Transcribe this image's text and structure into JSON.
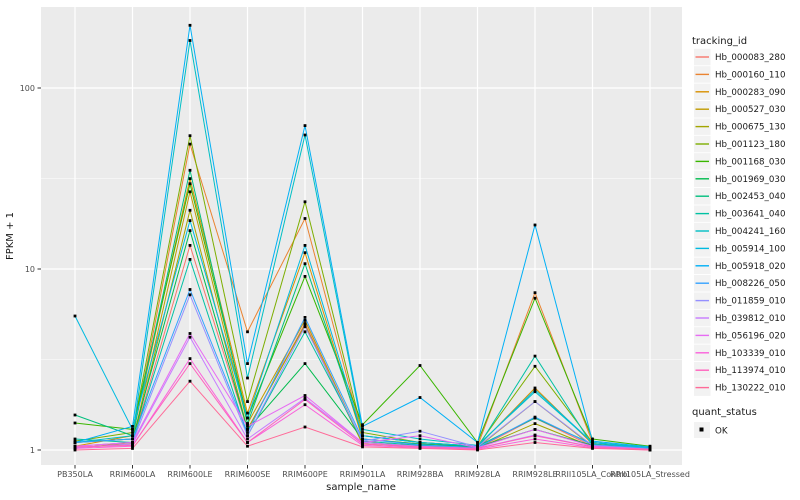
{
  "figure": {
    "bg": "#FFFFFF",
    "panel_bg": "#EBEBEB",
    "grid_color": "#FFFFFF",
    "axis_text_color": "#4D4D4D",
    "title_color": "#1A1A1A",
    "point_color": "#000000",
    "legend_key_bg": "#F2F2F2"
  },
  "chart_data": {
    "type": "line",
    "title": "",
    "xlabel": "sample_name",
    "ylabel": "FPKM + 1",
    "y_scale": "log10",
    "ylim": [
      0.83,
      258
    ],
    "y_tick_values": [
      1,
      10,
      100
    ],
    "y_tick_labels": [
      "1",
      "10",
      "100"
    ],
    "y_minor_values": [
      3.162,
      31.62
    ],
    "grid": true,
    "legend_position": "right",
    "categories": [
      "PB350LA",
      "RRIM600LA",
      "RRIM600LE",
      "RRIM600SE",
      "RRIM600PE",
      "RRIM901LA",
      "RRIM928BA",
      "RRIM928LA",
      "RRIM928LE",
      "RRII105LA_Control",
      "RRII105LA_Stressed"
    ],
    "series": [
      {
        "name": "Hb_000083_280",
        "color": "#F8766D",
        "values": [
          1.05,
          1.1,
          13.5,
          1.3,
          5.0,
          1.1,
          1.05,
          1.02,
          1.5,
          1.05,
          1.0
        ]
      },
      {
        "name": "Hb_000160_110",
        "color": "#EA8331",
        "values": [
          1.1,
          1.15,
          49.0,
          4.5,
          19.0,
          1.2,
          1.1,
          1.05,
          7.4,
          1.1,
          1.02
        ]
      },
      {
        "name": "Hb_000283_090",
        "color": "#D89000",
        "values": [
          1.05,
          1.2,
          31.6,
          1.6,
          12.3,
          1.15,
          1.08,
          1.04,
          2.2,
          1.08,
          1.02
        ]
      },
      {
        "name": "Hb_000527_030",
        "color": "#C09B00",
        "values": [
          1.02,
          1.1,
          26.7,
          1.4,
          5.2,
          1.1,
          1.05,
          1.03,
          1.85,
          1.05,
          1.01
        ]
      },
      {
        "name": "Hb_000675_130",
        "color": "#A3A500",
        "values": [
          1.03,
          1.08,
          21.1,
          1.3,
          4.9,
          1.08,
          1.04,
          1.02,
          1.4,
          1.04,
          1.01
        ]
      },
      {
        "name": "Hb_001123_180",
        "color": "#7CAE00",
        "values": [
          1.12,
          1.25,
          54.5,
          1.85,
          23.5,
          1.25,
          1.1,
          1.05,
          2.9,
          1.1,
          1.03
        ]
      },
      {
        "name": "Hb_001168_030",
        "color": "#39B600",
        "values": [
          1.41,
          1.3,
          29.6,
          1.5,
          9.1,
          1.38,
          2.93,
          1.1,
          6.9,
          1.15,
          1.05
        ]
      },
      {
        "name": "Hb_001969_030",
        "color": "#00BB4E",
        "values": [
          1.1,
          1.15,
          16.3,
          1.3,
          3.0,
          1.15,
          1.08,
          1.04,
          1.3,
          1.06,
          1.02
        ]
      },
      {
        "name": "Hb_002453_040",
        "color": "#00BF7D",
        "values": [
          1.56,
          1.2,
          35.1,
          1.4,
          10.7,
          1.2,
          1.1,
          1.05,
          1.5,
          1.08,
          1.02
        ]
      },
      {
        "name": "Hb_003641_040",
        "color": "#00C1A3",
        "values": [
          1.15,
          1.1,
          11.3,
          1.2,
          4.5,
          1.12,
          1.06,
          1.03,
          3.3,
          1.06,
          1.01
        ]
      },
      {
        "name": "Hb_004241_160",
        "color": "#00BFC4",
        "values": [
          1.1,
          1.2,
          183,
          2.5,
          55,
          1.3,
          1.15,
          1.06,
          2.1,
          1.1,
          1.03
        ]
      },
      {
        "name": "Hb_005914_100",
        "color": "#00BAE0",
        "values": [
          5.5,
          1.3,
          18.5,
          1.5,
          13.5,
          1.2,
          1.1,
          1.05,
          2.15,
          1.1,
          1.02
        ]
      },
      {
        "name": "Hb_005918_020",
        "color": "#00B0F6",
        "values": [
          1.1,
          1.35,
          222,
          3.0,
          62,
          1.35,
          1.95,
          1.1,
          17.5,
          1.12,
          1.04
        ]
      },
      {
        "name": "Hb_008226_050",
        "color": "#35A2FF",
        "values": [
          1.1,
          1.15,
          7.7,
          1.25,
          5.4,
          1.15,
          1.07,
          1.03,
          1.52,
          1.07,
          1.02
        ]
      },
      {
        "name": "Hb_011859_010",
        "color": "#9590FF",
        "values": [
          1.05,
          1.1,
          7.2,
          1.2,
          4.8,
          1.12,
          1.27,
          1.04,
          1.85,
          1.06,
          1.01
        ]
      },
      {
        "name": "Hb_039812_010",
        "color": "#C77CFF",
        "values": [
          1.03,
          1.08,
          4.2,
          1.15,
          1.93,
          1.1,
          1.05,
          1.02,
          1.21,
          1.04,
          1.01
        ]
      },
      {
        "name": "Hb_056196_020",
        "color": "#E76BF3",
        "values": [
          1.05,
          1.1,
          4.4,
          1.35,
          2.0,
          1.1,
          1.2,
          1.03,
          1.3,
          1.05,
          1.01
        ]
      },
      {
        "name": "Hb_103339_010",
        "color": "#FA62DB",
        "values": [
          1.02,
          1.05,
          3.2,
          1.1,
          1.78,
          1.06,
          1.03,
          1.01,
          1.15,
          1.03,
          1.0
        ]
      },
      {
        "name": "Hb_113974_010",
        "color": "#FF62BC",
        "values": [
          1.04,
          1.06,
          3.0,
          1.1,
          1.9,
          1.08,
          1.04,
          1.02,
          1.2,
          1.04,
          1.01
        ]
      },
      {
        "name": "Hb_130222_010",
        "color": "#FF6A98",
        "values": [
          1.0,
          1.02,
          2.4,
          1.05,
          1.34,
          1.04,
          1.02,
          1.0,
          1.1,
          1.02,
          1.0
        ]
      }
    ],
    "legend": {
      "color_title": "tracking_id",
      "shape_title": "quant_status",
      "shape_items": [
        "OK"
      ]
    }
  }
}
